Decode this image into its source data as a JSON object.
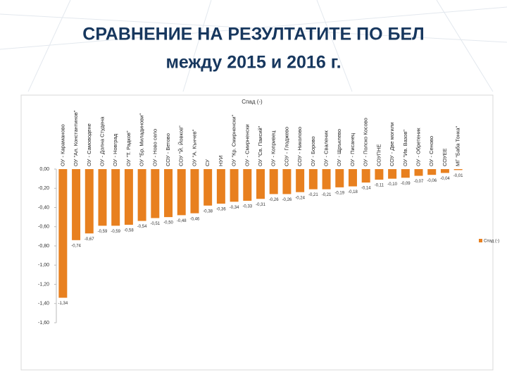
{
  "header": {
    "title": "СРАВНЕНИЕ НА РЕЗУЛТАТИТЕ ПО БЕЛ",
    "subtitle": "между 2015 и 2016 г."
  },
  "chart_data": {
    "type": "bar",
    "title": "Спад (-)",
    "legend_position": "right",
    "color": "#e8801f",
    "categories": [
      "ОУ - Караманово",
      "ОУ \"Ал. Константинов\"",
      "ОУ - Самоводене",
      "ОУ - Долна Студена",
      "ОУ - Новград",
      "ОУ \"Т. Радков\"",
      "ОУ \"Бр. Миладинови\"",
      "ОУ - Ново село",
      "СОУ - Ветово",
      "СОУ \"Й. Йовков\"",
      "ОУ \"А. Кънчев\"",
      "СУ",
      "НУИ",
      "ОУ \"Кр. Смирненски\"",
      "ОУ - Смирненски",
      "ОУ \"Св. Паисий\"",
      "ОУ - Копривец",
      "СОУ - Глоджево",
      "СОУ - Николово",
      "ОУ - Борово",
      "ОУ - Сваленик",
      "ОУ - Щръклево",
      "ОУ - Писанец",
      "ОУ - Полско Косово",
      "СОУПНЕ",
      "СОУ - Две могили",
      "ОУ \"Ив. Вазов\"",
      "ОУ - Обретеник",
      "ОУ - Сеново",
      "СОУЕЕ",
      "МГ \"Баба Тонка\""
    ],
    "series": [
      {
        "name": "Спад (-)",
        "color": "#e8801f",
        "values": [
          -1.34,
          -0.74,
          -0.67,
          -0.59,
          -0.59,
          -0.58,
          -0.54,
          -0.51,
          -0.5,
          -0.48,
          -0.46,
          -0.38,
          -0.36,
          -0.34,
          -0.33,
          -0.31,
          -0.26,
          -0.26,
          -0.24,
          -0.21,
          -0.21,
          -0.19,
          -0.18,
          -0.14,
          -0.11,
          -0.1,
          -0.09,
          -0.07,
          -0.06,
          -0.04,
          -0.01
        ],
        "value_labels": [
          "-1,34",
          "-0,74",
          "-0,67",
          "-0,59",
          "-0,59",
          "-0,58",
          "-0,54",
          "-0,51",
          "-0,50",
          "-0,48",
          "-0,46",
          "-0,38",
          "-0,36",
          "-0,34",
          "-0,33",
          "-0,31",
          "-0,26",
          "-0,26",
          "-0,24",
          "-0,21",
          "-0,21",
          "-0,19",
          "-0,18",
          "-0,14",
          "-0,11",
          "-0,10",
          "-0,09",
          "-0,07",
          "-0,06",
          "-0,04",
          "-0,01"
        ]
      }
    ],
    "ylim": [
      -1.6,
      0
    ],
    "yticks": [
      {
        "value": 0,
        "label": "0,00"
      },
      {
        "value": -0.2,
        "label": "-0,20"
      },
      {
        "value": -0.4,
        "label": "-0,40"
      },
      {
        "value": -0.6,
        "label": "-0,60"
      },
      {
        "value": -0.8,
        "label": "-0,80"
      },
      {
        "value": -1,
        "label": "-1,00"
      },
      {
        "value": -1.2,
        "label": "-1,20"
      },
      {
        "value": -1.4,
        "label": "-1,40"
      },
      {
        "value": -1.6,
        "label": "-1,60"
      }
    ]
  }
}
